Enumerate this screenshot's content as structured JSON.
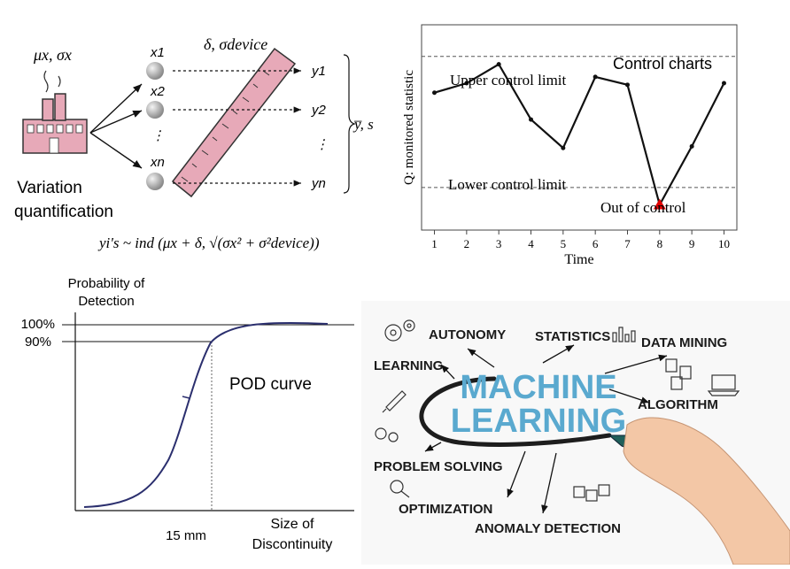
{
  "variation": {
    "params_top": "μx, σx",
    "device_params": "δ, σdevice",
    "x_labels": [
      "x1",
      "x2",
      "⋮",
      "xn"
    ],
    "y_labels": [
      "y1",
      "y2",
      "⋮",
      "yn"
    ],
    "summary": "y̅, s",
    "caption_line1": "Variation",
    "caption_line2": "quantification",
    "formula": "yi's ~ ind (μx + δ, √(σx² + σ²device))"
  },
  "control_chart": {
    "title": "Control charts",
    "ylabel": "Q: monitored statistic",
    "xlabel": "Time",
    "ucl_label": "Upper control limit",
    "lcl_label": "Lower control limit",
    "ooc_label": "Out of control",
    "x_ticks": [
      "1",
      "2",
      "3",
      "4",
      "5",
      "6",
      "7",
      "8",
      "9",
      "10"
    ],
    "colors": {
      "line": "#111111",
      "ooc_marker": "#e00000"
    }
  },
  "pod": {
    "ylabel_line1": "Probability of",
    "ylabel_line2": "Detection",
    "tick_100": "100%",
    "tick_90": "90%",
    "label": "POD curve",
    "x_tick": "15 mm",
    "xlabel_line1": "Size of",
    "xlabel_line2": "Discontinuity",
    "colors": {
      "curve": "#2b2f6e"
    }
  },
  "ml": {
    "center_line1": "MACHINE",
    "center_line2": "LEARNING",
    "terms": {
      "autonomy": "AUTONOMY",
      "statistics": "STATISTICS",
      "data_mining": "DATA MINING",
      "learning": "LEARNING",
      "algorithm": "ALGORITHM",
      "problem_solving": "PROBLEM SOLVING",
      "optimization": "OPTIMIZATION",
      "anomaly_detection": "ANOMALY DETECTION"
    },
    "colors": {
      "center": "#5aa9cf",
      "marker": "#1f5f5a"
    }
  },
  "chart_data": {
    "type": "line",
    "title": "Control charts",
    "xlabel": "Time",
    "ylabel": "Q: monitored statistic",
    "x": [
      1,
      2,
      3,
      4,
      5,
      6,
      7,
      8,
      9,
      10
    ],
    "series": [
      {
        "values": [
          0.72,
          0.78,
          0.9,
          0.55,
          0.37,
          0.82,
          0.77,
          0.01,
          0.38,
          0.78
        ]
      }
    ],
    "xlim": [
      0.6,
      10.4
    ],
    "ylim": [
      -0.15,
      1.15
    ],
    "ucl": 0.95,
    "lcl": 0.12,
    "out_of_control_x": 8,
    "grid": false,
    "annotations": [
      "Upper control limit",
      "Lower control limit",
      "Out of control"
    ]
  }
}
